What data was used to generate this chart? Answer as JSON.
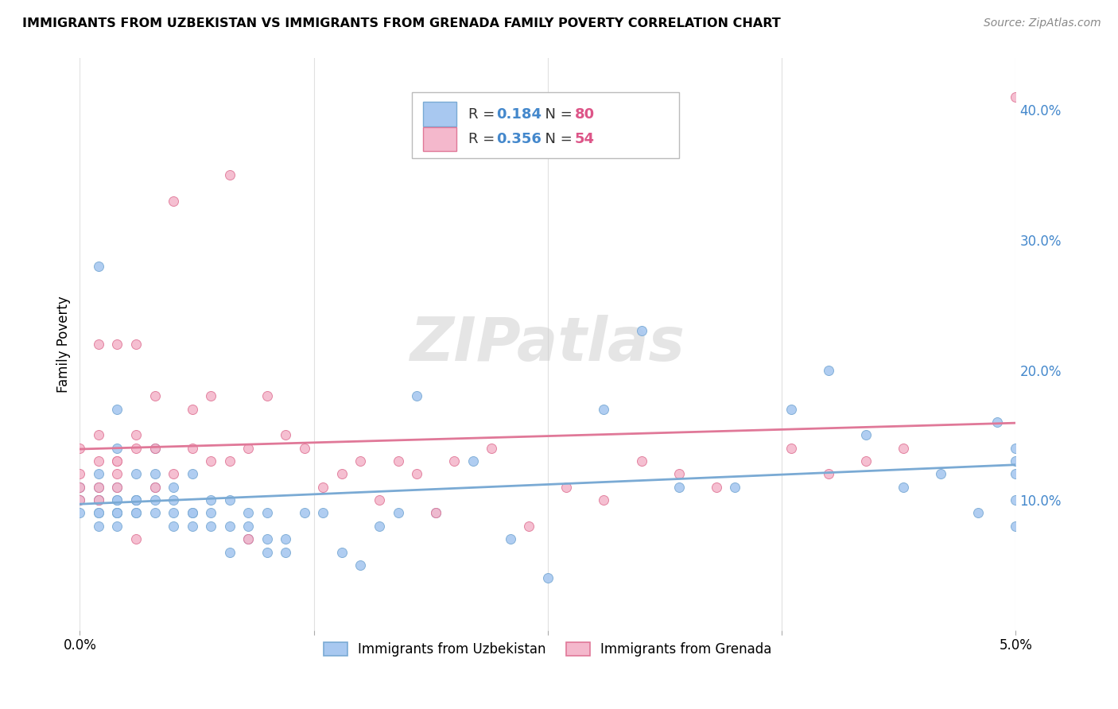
{
  "title": "IMMIGRANTS FROM UZBEKISTAN VS IMMIGRANTS FROM GRENADA FAMILY POVERTY CORRELATION CHART",
  "source": "Source: ZipAtlas.com",
  "ylabel": "Family Poverty",
  "y_tick_vals": [
    0.1,
    0.2,
    0.3,
    0.4
  ],
  "y_tick_labels": [
    "10.0%",
    "20.0%",
    "30.0%",
    "40.0%"
  ],
  "color_uz": "#a8c8f0",
  "color_gr": "#f4b8cc",
  "edge_color_uz": "#7aaad4",
  "edge_color_gr": "#e07898",
  "line_color_uz": "#7aaad4",
  "line_color_gr": "#e07898",
  "R_uz": 0.184,
  "N_uz": 80,
  "R_gr": 0.356,
  "N_gr": 54,
  "uz_x": [
    0.0,
    0.0,
    0.0,
    0.001,
    0.001,
    0.001,
    0.001,
    0.001,
    0.001,
    0.001,
    0.001,
    0.002,
    0.002,
    0.002,
    0.002,
    0.002,
    0.002,
    0.002,
    0.002,
    0.002,
    0.003,
    0.003,
    0.003,
    0.003,
    0.003,
    0.003,
    0.004,
    0.004,
    0.004,
    0.004,
    0.004,
    0.005,
    0.005,
    0.005,
    0.005,
    0.006,
    0.006,
    0.006,
    0.006,
    0.007,
    0.007,
    0.007,
    0.008,
    0.008,
    0.008,
    0.009,
    0.009,
    0.009,
    0.01,
    0.01,
    0.01,
    0.011,
    0.011,
    0.012,
    0.013,
    0.014,
    0.015,
    0.016,
    0.017,
    0.018,
    0.019,
    0.021,
    0.023,
    0.025,
    0.028,
    0.03,
    0.032,
    0.035,
    0.038,
    0.04,
    0.042,
    0.044,
    0.046,
    0.048,
    0.049,
    0.05,
    0.05,
    0.05,
    0.05,
    0.05
  ],
  "uz_y": [
    0.09,
    0.1,
    0.11,
    0.08,
    0.09,
    0.09,
    0.1,
    0.1,
    0.11,
    0.12,
    0.28,
    0.08,
    0.09,
    0.09,
    0.09,
    0.1,
    0.1,
    0.11,
    0.14,
    0.17,
    0.09,
    0.09,
    0.1,
    0.1,
    0.1,
    0.12,
    0.09,
    0.1,
    0.11,
    0.12,
    0.14,
    0.08,
    0.09,
    0.1,
    0.11,
    0.08,
    0.09,
    0.09,
    0.12,
    0.08,
    0.09,
    0.1,
    0.06,
    0.08,
    0.1,
    0.07,
    0.08,
    0.09,
    0.06,
    0.07,
    0.09,
    0.06,
    0.07,
    0.09,
    0.09,
    0.06,
    0.05,
    0.08,
    0.09,
    0.18,
    0.09,
    0.13,
    0.07,
    0.04,
    0.17,
    0.23,
    0.11,
    0.11,
    0.17,
    0.2,
    0.15,
    0.11,
    0.12,
    0.09,
    0.16,
    0.08,
    0.1,
    0.12,
    0.13,
    0.14
  ],
  "gr_x": [
    0.0,
    0.0,
    0.0,
    0.0,
    0.001,
    0.001,
    0.001,
    0.001,
    0.001,
    0.002,
    0.002,
    0.002,
    0.002,
    0.002,
    0.003,
    0.003,
    0.003,
    0.003,
    0.004,
    0.004,
    0.004,
    0.005,
    0.005,
    0.006,
    0.006,
    0.007,
    0.007,
    0.008,
    0.008,
    0.009,
    0.009,
    0.01,
    0.011,
    0.012,
    0.013,
    0.014,
    0.015,
    0.016,
    0.017,
    0.018,
    0.019,
    0.02,
    0.022,
    0.024,
    0.026,
    0.028,
    0.03,
    0.032,
    0.034,
    0.038,
    0.04,
    0.042,
    0.044,
    0.05
  ],
  "gr_y": [
    0.1,
    0.11,
    0.12,
    0.14,
    0.1,
    0.11,
    0.13,
    0.15,
    0.22,
    0.11,
    0.12,
    0.13,
    0.13,
    0.22,
    0.07,
    0.14,
    0.15,
    0.22,
    0.11,
    0.14,
    0.18,
    0.12,
    0.33,
    0.14,
    0.17,
    0.13,
    0.18,
    0.13,
    0.35,
    0.07,
    0.14,
    0.18,
    0.15,
    0.14,
    0.11,
    0.12,
    0.13,
    0.1,
    0.13,
    0.12,
    0.09,
    0.13,
    0.14,
    0.08,
    0.11,
    0.1,
    0.13,
    0.12,
    0.11,
    0.14,
    0.12,
    0.13,
    0.14,
    0.41
  ],
  "watermark": "ZIPatlas",
  "background_color": "#ffffff",
  "grid_color": "#e0e0e0",
  "text_color_blue": "#4488cc",
  "text_color_pink": "#dd5588"
}
